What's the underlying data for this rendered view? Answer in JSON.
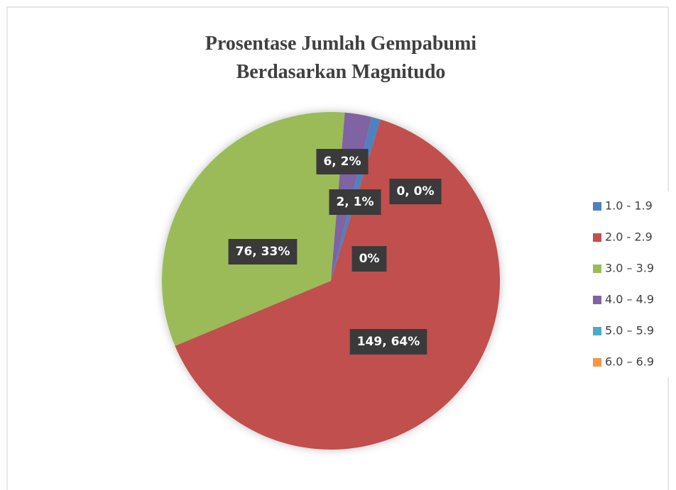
{
  "chart_data": {
    "type": "pie",
    "title": "Prosentase Jumlah Gempabumi",
    "subtitle": "Berdasarkan Magnitudo",
    "categories": [
      "1.0 - 1.9",
      "2.0 - 2.9",
      "3.0 – 3.9",
      "4.0 – 4.9",
      "5.0 – 5.9",
      "6.0 – 6.9"
    ],
    "values": [
      2,
      149,
      76,
      6,
      0,
      0
    ],
    "value_labels": [
      "2, 1%",
      "149, 64%",
      "76, 33%",
      "6, 2%",
      "0, 0%",
      "0%"
    ],
    "colors": [
      "#4f81bd",
      "#c0504d",
      "#9bbb59",
      "#8064a2",
      "#4bacc6",
      "#f79646"
    ],
    "legend": "right"
  }
}
